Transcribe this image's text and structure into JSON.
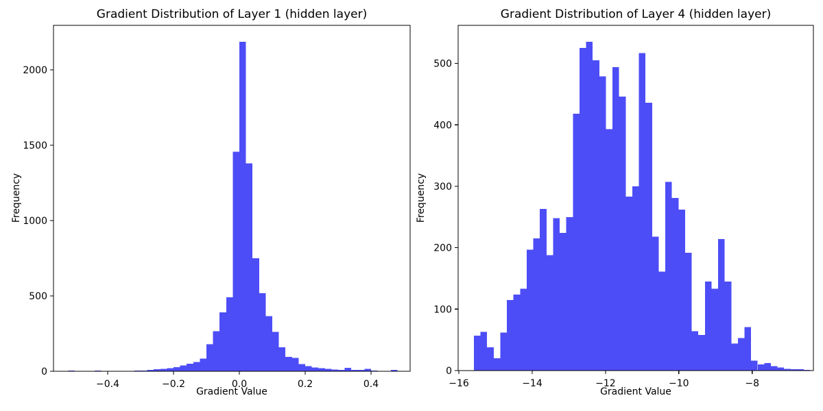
{
  "figure": {
    "background": "#ffffff",
    "bar_color": "#4D4DF7",
    "spine_color": "#000000",
    "text_color": "#000000"
  },
  "chart_data": [
    {
      "type": "histogram",
      "title": "Gradient Distribution of Layer 1 (hidden layer)",
      "xlabel": "Gradient Value",
      "ylabel": "Frequency",
      "bar_color": "#4D4DF7",
      "grid": false,
      "bin_start": -0.52,
      "bin_width": 0.02,
      "values": [
        5,
        0,
        0,
        0,
        5,
        0,
        0,
        0,
        3,
        3,
        4,
        5,
        9,
        13,
        17,
        21,
        28,
        39,
        49,
        61,
        85,
        180,
        265,
        390,
        490,
        1456,
        2186,
        1379,
        750,
        517,
        366,
        262,
        160,
        95,
        88,
        47,
        35,
        24,
        21,
        17,
        12,
        10,
        23,
        8,
        8,
        15,
        4,
        2,
        0,
        9
      ],
      "xlim": [
        -0.5646,
        0.5188
      ],
      "ylim": [
        0,
        2295
      ],
      "xticks": [
        -0.4,
        -0.2,
        0,
        0.2,
        0.4
      ],
      "xtick_labels": [
        "−0.4",
        "−0.2",
        "0.0",
        "0.2",
        "0.4"
      ],
      "yticks": [
        0,
        500,
        1000,
        1500,
        2000
      ],
      "ytick_labels": [
        "0",
        "500",
        "1000",
        "1500",
        "2000"
      ]
    },
    {
      "type": "histogram",
      "title": "Gradient Distribution of Layer 4 (hidden layer)",
      "xlabel": "Gradient Value",
      "ylabel": "Frequency",
      "bar_color": "#4D4DF7",
      "grid": false,
      "bin_start": -15.59,
      "bin_width": 0.18,
      "values": [
        57,
        63,
        38,
        20,
        62,
        115,
        124,
        133,
        197,
        215,
        263,
        188,
        248,
        224,
        250,
        418,
        525,
        535,
        505,
        479,
        393,
        494,
        446,
        283,
        300,
        517,
        436,
        218,
        161,
        307,
        281,
        262,
        192,
        64,
        58,
        145,
        133,
        214,
        145,
        44,
        53,
        71,
        16,
        10,
        12,
        7,
        5,
        3,
        2,
        2,
        1
      ],
      "xlim": [
        -16.02,
        -6.33
      ],
      "ylim": [
        0,
        562
      ],
      "xticks": [
        -16,
        -14,
        -12,
        -10,
        -8
      ],
      "xtick_labels": [
        "−16",
        "−14",
        "−12",
        "−10",
        "−8"
      ],
      "yticks": [
        0,
        100,
        200,
        300,
        400,
        500
      ],
      "ytick_labels": [
        "0",
        "100",
        "200",
        "300",
        "400",
        "500"
      ]
    }
  ]
}
